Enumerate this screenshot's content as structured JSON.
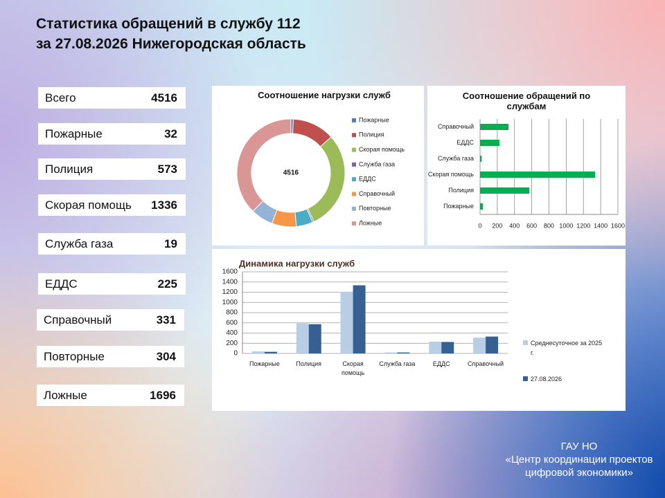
{
  "header": {
    "line1": "Статистика обращений в службу 112",
    "line2": "за 27.08.2026 Нижегородская область"
  },
  "stats": [
    {
      "label": "Всего",
      "value": 4516
    },
    {
      "label": "Пожарные",
      "value": 32
    },
    {
      "label": "Полиция",
      "value": 573
    },
    {
      "label": "Скорая помощь",
      "value": 1336
    },
    {
      "label": "Служба газа",
      "value": 19
    },
    {
      "label": "ЕДДС",
      "value": 225
    },
    {
      "label": "Справочный",
      "value": 331
    },
    {
      "label": "Повторные",
      "value": 304
    },
    {
      "label": "Ложные",
      "value": 1696
    }
  ],
  "footer": {
    "lines": [
      "ГАУ НО",
      "«Центр координации проектов",
      "цифровой экономики»"
    ]
  },
  "chart_data": [
    {
      "type": "pie",
      "title": "Соотношение нагрузки служб",
      "center_label": 4516,
      "categories": [
        "Пожарные",
        "Полиция",
        "Скорая помощь",
        "Служба газа",
        "ЕДДС",
        "Справочный",
        "Повторные",
        "Ложные"
      ],
      "values": [
        32,
        573,
        1336,
        19,
        225,
        331,
        304,
        1696
      ],
      "colors": [
        "#4f81bd",
        "#c0504d",
        "#9bbb59",
        "#8064a2",
        "#4bacc6",
        "#f79646",
        "#95b3d7",
        "#d99694"
      ],
      "legend": "right"
    },
    {
      "type": "hbar",
      "title": "Соотношение обращений по службам",
      "categories": [
        "Пожарные",
        "Полиция",
        "Скорая помощь",
        "Служба газа",
        "ЕДДС",
        "Справочный"
      ],
      "values": [
        32,
        573,
        1336,
        19,
        225,
        331
      ],
      "color": "#00b050",
      "xlim": [
        0,
        1600
      ],
      "xticks": [
        0,
        200,
        400,
        600,
        800,
        1000,
        1200,
        1400,
        1600
      ],
      "grid": true
    },
    {
      "type": "bar",
      "title": "Динамика нагрузки служб",
      "categories": [
        "Пожарные",
        "Полиция",
        "Скорая помощь",
        "Служба газа",
        "ЕДДС",
        "Справочный"
      ],
      "series": [
        {
          "name": "Среднесуточное за 2025 г.",
          "color": "#b9cde5",
          "values": [
            40,
            590,
            1210,
            20,
            230,
            310
          ]
        },
        {
          "name": "27.08.2026",
          "color": "#376092",
          "values": [
            32,
            573,
            1336,
            19,
            225,
            331
          ]
        }
      ],
      "ylim": [
        0,
        1600
      ],
      "yticks": [
        0,
        200,
        400,
        600,
        800,
        1000,
        1200,
        1400,
        1600
      ],
      "grid": true,
      "legend": "right"
    }
  ]
}
